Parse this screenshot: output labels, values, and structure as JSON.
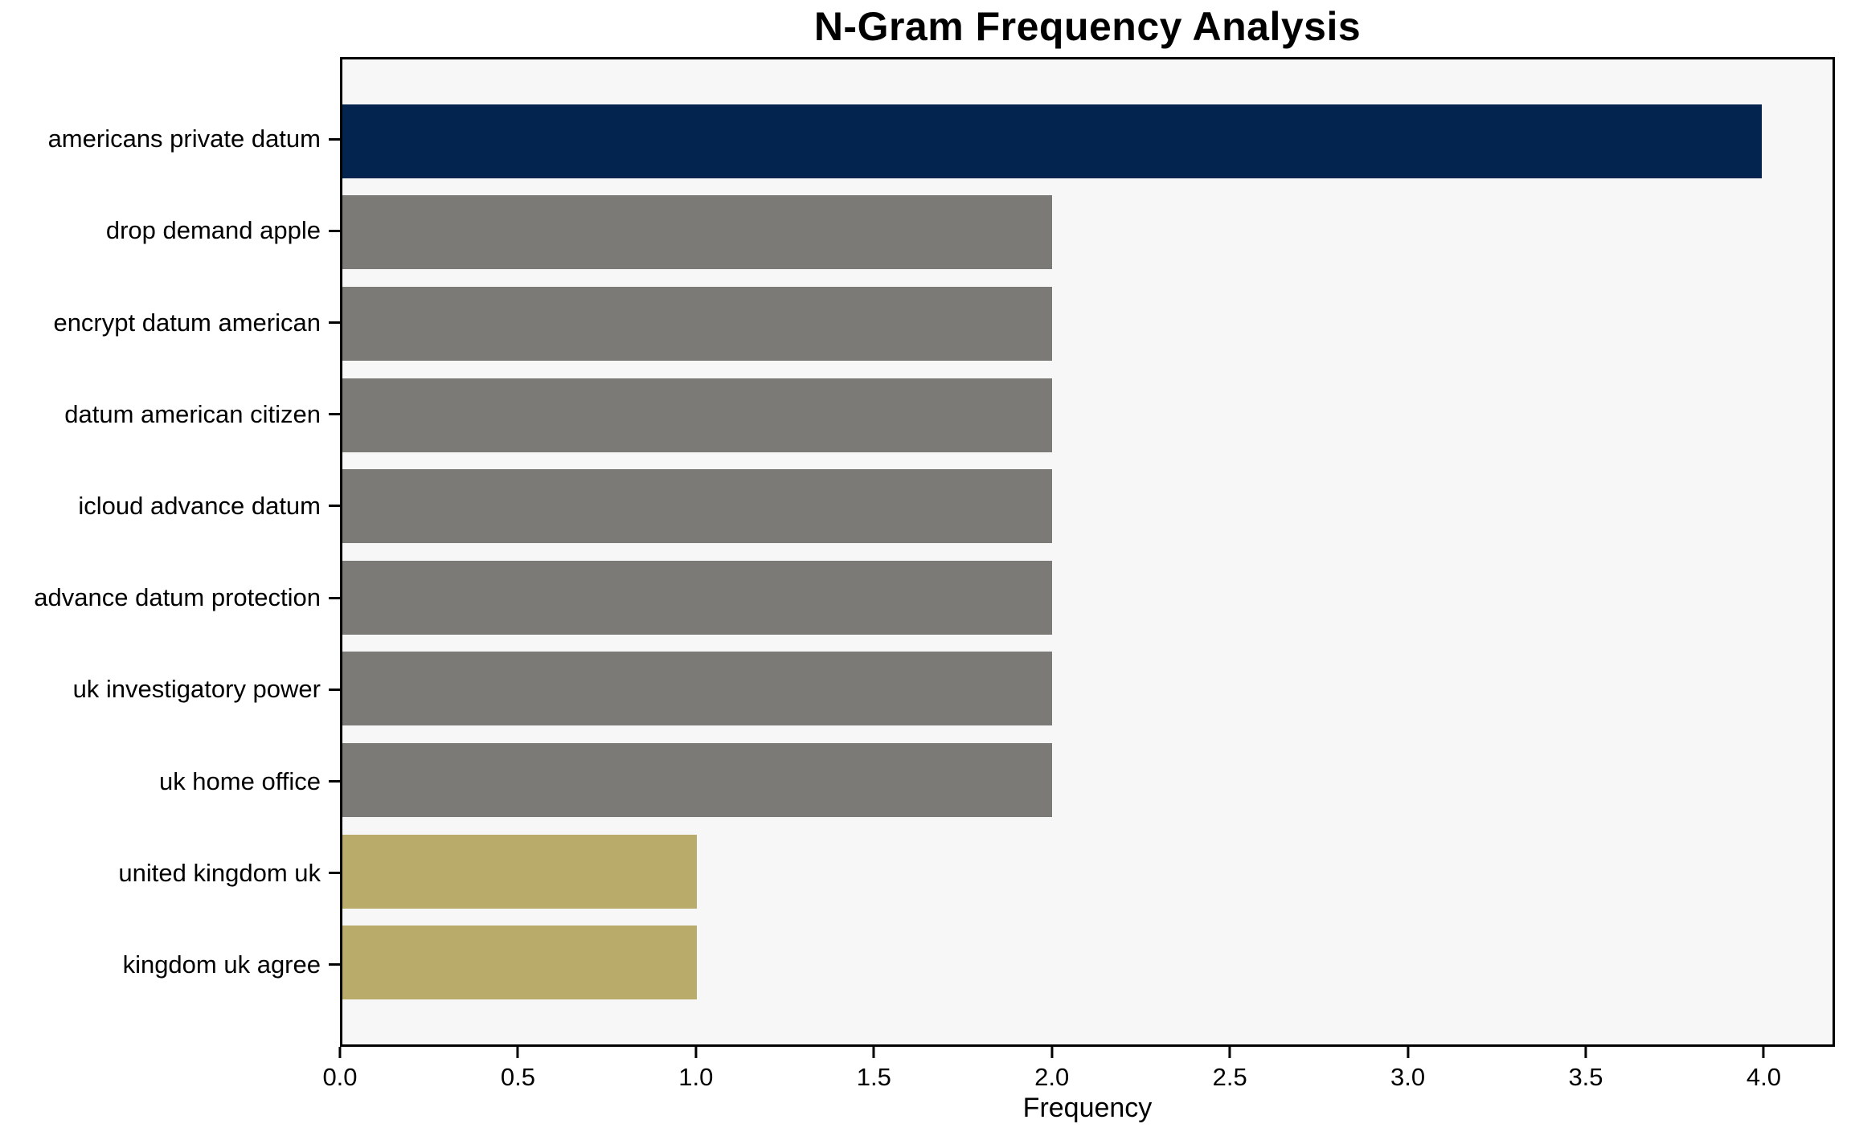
{
  "chart_data": {
    "type": "bar",
    "orientation": "horizontal",
    "title": "N-Gram Frequency Analysis",
    "xlabel": "Frequency",
    "ylabel": "",
    "categories": [
      "americans private datum",
      "drop demand apple",
      "encrypt datum american",
      "datum american citizen",
      "icloud advance datum",
      "advance datum protection",
      "uk investigatory power",
      "uk home office",
      "united kingdom uk",
      "kingdom uk agree"
    ],
    "values": [
      4,
      2,
      2,
      2,
      2,
      2,
      2,
      2,
      1,
      1
    ],
    "bar_colors": [
      "#02244e",
      "#7b7a76",
      "#7b7a76",
      "#7b7a76",
      "#7b7a76",
      "#7b7a76",
      "#7b7a76",
      "#7b7a76",
      "#b9ab6a",
      "#b9ab6a"
    ],
    "xlim": [
      0,
      4.2
    ],
    "x_ticks": [
      0.0,
      0.5,
      1.0,
      1.5,
      2.0,
      2.5,
      3.0,
      3.5,
      4.0
    ],
    "x_tick_labels": [
      "0.0",
      "0.5",
      "1.0",
      "1.5",
      "2.0",
      "2.5",
      "3.0",
      "3.5",
      "4.0"
    ],
    "grid": false,
    "legend": null,
    "colors": {
      "highlight": "#02244e",
      "mid": "#7b7a76",
      "low": "#b9ab6a",
      "plot_background": "#f7f7f7",
      "figure_background": "#ffffff",
      "spine": "#000000",
      "text": "#000000"
    }
  }
}
